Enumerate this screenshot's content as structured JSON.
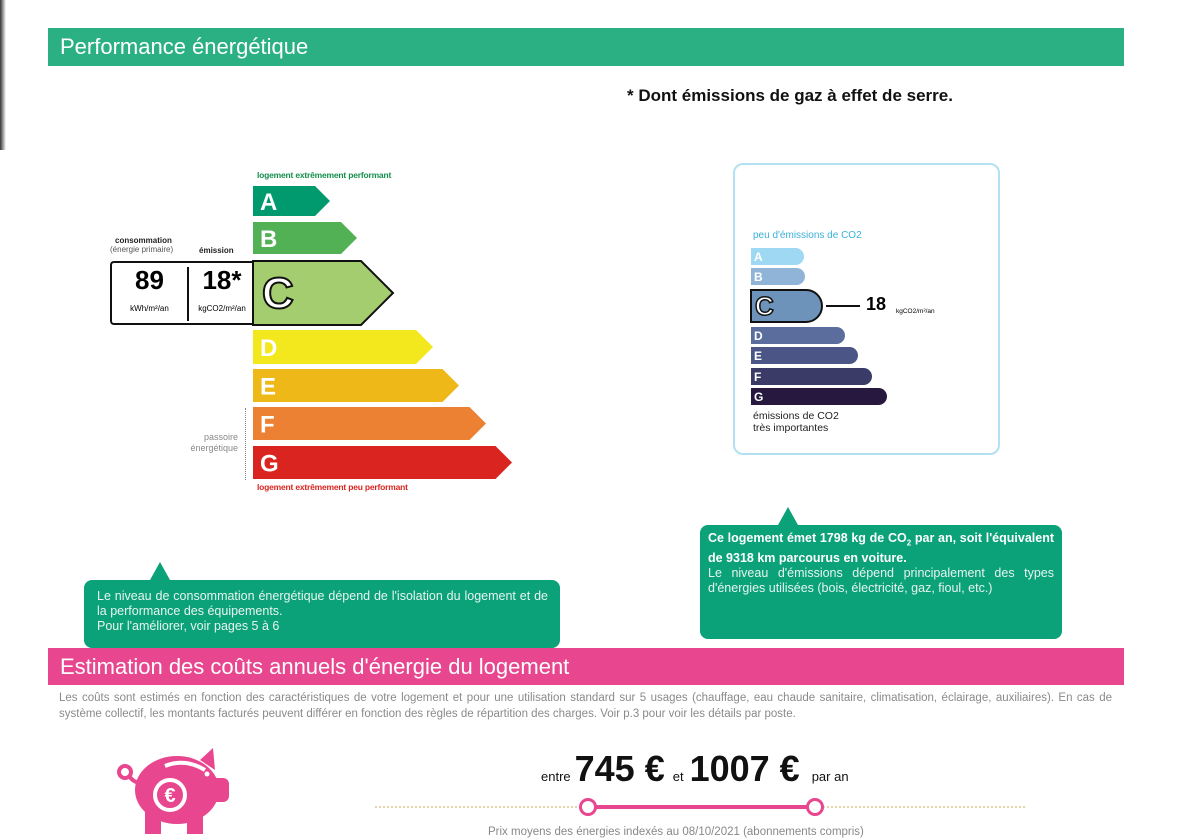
{
  "left_edge": "",
  "performance": {
    "title": "Performance énergétique",
    "footnote": "* Dont émissions de gaz à effet de serre."
  },
  "dpe": {
    "top_label": "logement extrêmement performant",
    "bottom_label": "logement extrêmement peu performant",
    "passoire_label": [
      "passoire",
      "énergétique"
    ],
    "consumption_header": "consommation",
    "consumption_sub": "(énergie primaire)",
    "emission_header": "émission",
    "consumption_value": "89",
    "consumption_unit": "kWh/m²/an",
    "emission_value": "18*",
    "emission_unit": "kgCO2/m²/an",
    "current_class": "C",
    "classes": [
      {
        "letter": "A",
        "color": "#009a6e"
      },
      {
        "letter": "B",
        "color": "#53b155"
      },
      {
        "letter": "C",
        "color": "#a3cd6e"
      },
      {
        "letter": "D",
        "color": "#f3e71e"
      },
      {
        "letter": "E",
        "color": "#efb819"
      },
      {
        "letter": "F",
        "color": "#ec8134"
      },
      {
        "letter": "G",
        "color": "#d9241f"
      }
    ]
  },
  "ges": {
    "top_label": "peu d'émissions de CO2",
    "bottom_label": [
      "émissions de CO2",
      "très importantes"
    ],
    "value": "18",
    "unit": "kgCO2/m²/an",
    "current_class": "C",
    "classes": [
      {
        "letter": "A",
        "color": "#9fd8f3"
      },
      {
        "letter": "B",
        "color": "#8fb4d8"
      },
      {
        "letter": "C",
        "color": "#6e93bb"
      },
      {
        "letter": "D",
        "color": "#5a6d9c"
      },
      {
        "letter": "E",
        "color": "#4b5586"
      },
      {
        "letter": "F",
        "color": "#3a3b66"
      },
      {
        "letter": "G",
        "color": "#26183f"
      }
    ]
  },
  "callout_left": {
    "line1": "Le niveau de consommation énergétique dépend de l'isolation du logement et de la performance des équipements.",
    "line2": "Pour l'améliorer, voir pages 5 à 6"
  },
  "callout_right": {
    "bold_a": "Ce logement émet 1798  kg de CO",
    "bold_sub": "2",
    "bold_b": " par an, soit l'équivalent de 9318 km parcourus en voiture.",
    "text": "Le niveau d'émissions dépend principalement des types d'énergies utilisées (bois, électricité, gaz, fioul, etc.)"
  },
  "costs": {
    "title": "Estimation des coûts annuels d'énergie du logement",
    "description": "Les coûts sont estimés en fonction des caractéristiques de votre logement et pour une utilisation standard sur 5 usages (chauffage, eau chaude sanitaire, climatisation, éclairage, auxiliaires). En cas de système collectif, les montants facturés peuvent différer en fonction des règles de répartition des charges. Voir p.3 pour voir les détails par poste.",
    "between": "entre",
    "min": "745 €",
    "and": "et",
    "max": "1007 €",
    "per_year": "par an",
    "footnote": "Prix moyens des énergies indexés au 08/10/2021 (abonnements compris)",
    "accent": "#e8468f"
  }
}
